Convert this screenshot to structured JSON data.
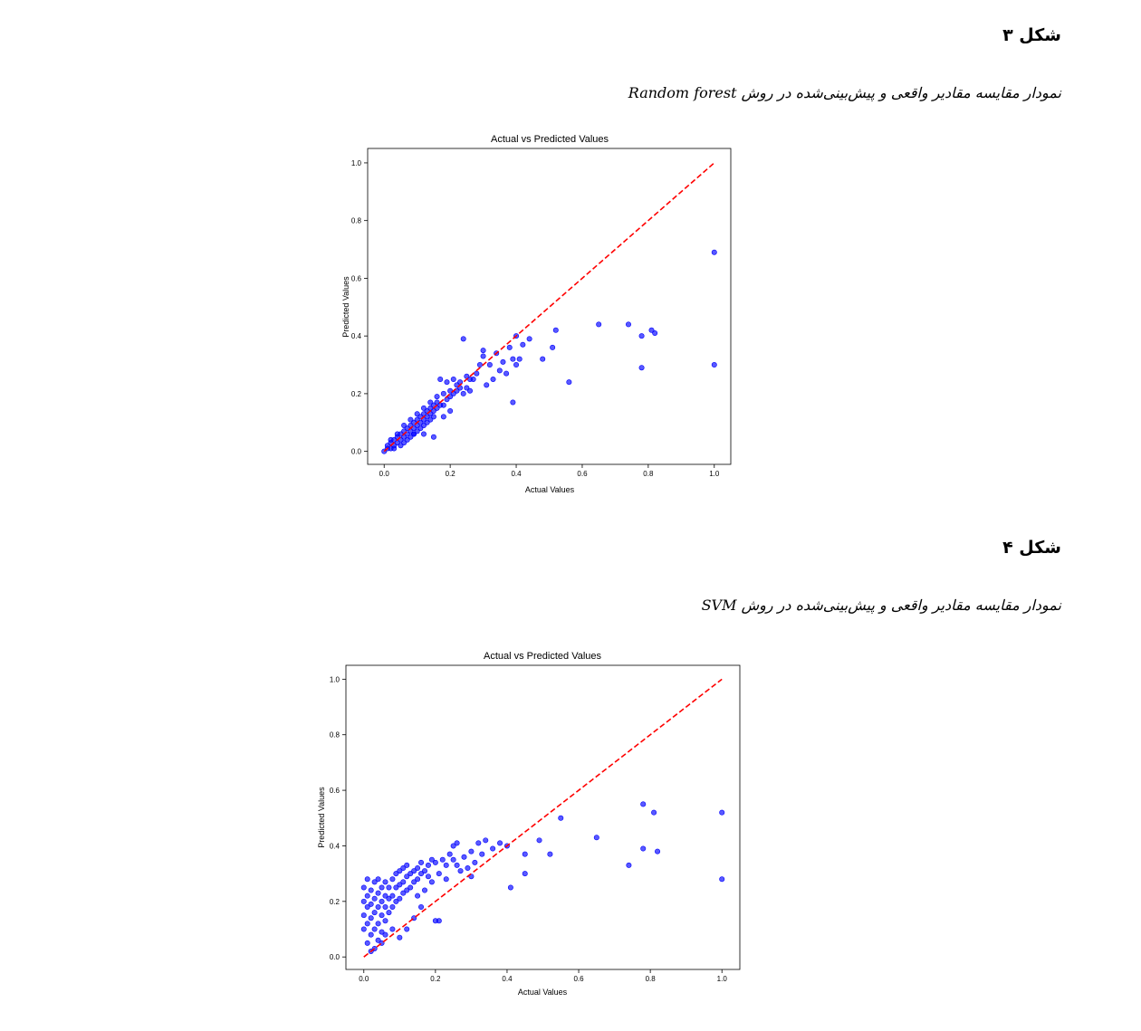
{
  "figures": [
    {
      "label": "شکل ۳",
      "caption": "نمودار مقایسه مقادیر واقعی و پیش‌بینی‌شده در روش Random forest",
      "chart_data": {
        "type": "scatter",
        "title": "Actual vs Predicted Values",
        "xlabel": "Actual Values",
        "ylabel": "Predicted Values",
        "xlim": [
          -0.05,
          1.05
        ],
        "ylim": [
          -0.045,
          1.05
        ],
        "xticks": [
          "0.0",
          "0.2",
          "0.4",
          "0.6",
          "0.8",
          "1.0"
        ],
        "yticks": [
          "0.0",
          "0.2",
          "0.4",
          "0.6",
          "0.8",
          "1.0"
        ],
        "point_color": "#0000ff",
        "reference_line": {
          "x": [
            0,
            1
          ],
          "y": [
            0,
            1
          ],
          "color": "#ff0000",
          "style": "dashed"
        },
        "points": [
          [
            0.0,
            0.0
          ],
          [
            0.01,
            0.01
          ],
          [
            0.01,
            0.02
          ],
          [
            0.02,
            0.01
          ],
          [
            0.02,
            0.03
          ],
          [
            0.03,
            0.02
          ],
          [
            0.03,
            0.04
          ],
          [
            0.04,
            0.03
          ],
          [
            0.04,
            0.05
          ],
          [
            0.05,
            0.04
          ],
          [
            0.05,
            0.06
          ],
          [
            0.06,
            0.05
          ],
          [
            0.06,
            0.07
          ],
          [
            0.07,
            0.06
          ],
          [
            0.07,
            0.08
          ],
          [
            0.08,
            0.07
          ],
          [
            0.08,
            0.09
          ],
          [
            0.09,
            0.08
          ],
          [
            0.09,
            0.1
          ],
          [
            0.1,
            0.09
          ],
          [
            0.1,
            0.11
          ],
          [
            0.11,
            0.1
          ],
          [
            0.11,
            0.12
          ],
          [
            0.12,
            0.11
          ],
          [
            0.12,
            0.13
          ],
          [
            0.13,
            0.12
          ],
          [
            0.13,
            0.14
          ],
          [
            0.14,
            0.13
          ],
          [
            0.14,
            0.15
          ],
          [
            0.15,
            0.14
          ],
          [
            0.15,
            0.16
          ],
          [
            0.16,
            0.15
          ],
          [
            0.16,
            0.17
          ],
          [
            0.17,
            0.16
          ],
          [
            0.02,
            0.04
          ],
          [
            0.03,
            0.01
          ],
          [
            0.04,
            0.06
          ],
          [
            0.05,
            0.02
          ],
          [
            0.06,
            0.03
          ],
          [
            0.07,
            0.04
          ],
          [
            0.08,
            0.05
          ],
          [
            0.09,
            0.06
          ],
          [
            0.1,
            0.07
          ],
          [
            0.11,
            0.08
          ],
          [
            0.12,
            0.09
          ],
          [
            0.13,
            0.1
          ],
          [
            0.14,
            0.11
          ],
          [
            0.15,
            0.12
          ],
          [
            0.06,
            0.09
          ],
          [
            0.08,
            0.11
          ],
          [
            0.1,
            0.13
          ],
          [
            0.12,
            0.15
          ],
          [
            0.14,
            0.17
          ],
          [
            0.16,
            0.19
          ],
          [
            0.18,
            0.2
          ],
          [
            0.18,
            0.16
          ],
          [
            0.19,
            0.18
          ],
          [
            0.2,
            0.19
          ],
          [
            0.2,
            0.21
          ],
          [
            0.21,
            0.2
          ],
          [
            0.22,
            0.21
          ],
          [
            0.22,
            0.23
          ],
          [
            0.23,
            0.22
          ],
          [
            0.17,
            0.25
          ],
          [
            0.19,
            0.24
          ],
          [
            0.21,
            0.25
          ],
          [
            0.23,
            0.24
          ],
          [
            0.24,
            0.2
          ],
          [
            0.25,
            0.22
          ],
          [
            0.26,
            0.21
          ],
          [
            0.27,
            0.25
          ],
          [
            0.28,
            0.27
          ],
          [
            0.25,
            0.26
          ],
          [
            0.26,
            0.25
          ],
          [
            0.3,
            0.33
          ],
          [
            0.3,
            0.35
          ],
          [
            0.29,
            0.3
          ],
          [
            0.31,
            0.23
          ],
          [
            0.32,
            0.3
          ],
          [
            0.33,
            0.25
          ],
          [
            0.34,
            0.34
          ],
          [
            0.35,
            0.28
          ],
          [
            0.36,
            0.31
          ],
          [
            0.37,
            0.27
          ],
          [
            0.38,
            0.36
          ],
          [
            0.39,
            0.32
          ],
          [
            0.4,
            0.3
          ],
          [
            0.41,
            0.32
          ],
          [
            0.42,
            0.37
          ],
          [
            0.44,
            0.39
          ],
          [
            0.48,
            0.32
          ],
          [
            0.51,
            0.36
          ],
          [
            0.52,
            0.42
          ],
          [
            0.56,
            0.24
          ],
          [
            0.39,
            0.17
          ],
          [
            0.24,
            0.39
          ],
          [
            0.4,
            0.4
          ],
          [
            0.65,
            0.44
          ],
          [
            0.74,
            0.44
          ],
          [
            0.78,
            0.4
          ],
          [
            0.81,
            0.42
          ],
          [
            0.82,
            0.41
          ],
          [
            0.78,
            0.29
          ],
          [
            1.0,
            0.69
          ],
          [
            1.0,
            0.3
          ],
          [
            0.09,
            0.06
          ],
          [
            0.12,
            0.06
          ],
          [
            0.15,
            0.05
          ],
          [
            0.2,
            0.14
          ],
          [
            0.18,
            0.12
          ]
        ]
      }
    },
    {
      "label": "شکل ۴",
      "caption": "نمودار مقایسه مقادیر واقعی و پیش‌بینی‌شده در روش SVM",
      "chart_data": {
        "type": "scatter",
        "title": "Actual vs Predicted Values",
        "xlabel": "Actual Values",
        "ylabel": "Predicted Values",
        "xlim": [
          -0.05,
          1.05
        ],
        "ylim": [
          -0.045,
          1.05
        ],
        "xticks": [
          "0.0",
          "0.2",
          "0.4",
          "0.6",
          "0.8",
          "1.0"
        ],
        "yticks": [
          "0.0",
          "0.2",
          "0.4",
          "0.6",
          "0.8",
          "1.0"
        ],
        "point_color": "#0000ff",
        "reference_line": {
          "x": [
            0,
            1
          ],
          "y": [
            0,
            1
          ],
          "color": "#ff0000",
          "style": "dashed"
        },
        "points": [
          [
            0.0,
            0.1
          ],
          [
            0.0,
            0.15
          ],
          [
            0.0,
            0.2
          ],
          [
            0.0,
            0.25
          ],
          [
            0.01,
            0.05
          ],
          [
            0.01,
            0.12
          ],
          [
            0.01,
            0.18
          ],
          [
            0.01,
            0.22
          ],
          [
            0.01,
            0.28
          ],
          [
            0.02,
            0.02
          ],
          [
            0.02,
            0.08
          ],
          [
            0.02,
            0.14
          ],
          [
            0.02,
            0.19
          ],
          [
            0.02,
            0.24
          ],
          [
            0.03,
            0.03
          ],
          [
            0.03,
            0.1
          ],
          [
            0.03,
            0.16
          ],
          [
            0.03,
            0.21
          ],
          [
            0.03,
            0.27
          ],
          [
            0.04,
            0.06
          ],
          [
            0.04,
            0.12
          ],
          [
            0.04,
            0.18
          ],
          [
            0.04,
            0.23
          ],
          [
            0.04,
            0.28
          ],
          [
            0.05,
            0.09
          ],
          [
            0.05,
            0.15
          ],
          [
            0.05,
            0.2
          ],
          [
            0.05,
            0.25
          ],
          [
            0.06,
            0.13
          ],
          [
            0.06,
            0.18
          ],
          [
            0.06,
            0.22
          ],
          [
            0.06,
            0.27
          ],
          [
            0.07,
            0.16
          ],
          [
            0.07,
            0.21
          ],
          [
            0.07,
            0.25
          ],
          [
            0.08,
            0.18
          ],
          [
            0.08,
            0.22
          ],
          [
            0.08,
            0.28
          ],
          [
            0.09,
            0.2
          ],
          [
            0.09,
            0.25
          ],
          [
            0.09,
            0.3
          ],
          [
            0.1,
            0.21
          ],
          [
            0.1,
            0.26
          ],
          [
            0.1,
            0.31
          ],
          [
            0.11,
            0.23
          ],
          [
            0.11,
            0.27
          ],
          [
            0.11,
            0.32
          ],
          [
            0.12,
            0.24
          ],
          [
            0.12,
            0.29
          ],
          [
            0.12,
            0.33
          ],
          [
            0.13,
            0.25
          ],
          [
            0.13,
            0.3
          ],
          [
            0.14,
            0.27
          ],
          [
            0.14,
            0.31
          ],
          [
            0.15,
            0.28
          ],
          [
            0.15,
            0.32
          ],
          [
            0.16,
            0.3
          ],
          [
            0.16,
            0.34
          ],
          [
            0.17,
            0.31
          ],
          [
            0.18,
            0.33
          ],
          [
            0.19,
            0.35
          ],
          [
            0.2,
            0.34
          ],
          [
            0.21,
            0.3
          ],
          [
            0.22,
            0.35
          ],
          [
            0.23,
            0.33
          ],
          [
            0.24,
            0.37
          ],
          [
            0.25,
            0.4
          ],
          [
            0.25,
            0.35
          ],
          [
            0.26,
            0.41
          ],
          [
            0.27,
            0.31
          ],
          [
            0.28,
            0.36
          ],
          [
            0.29,
            0.32
          ],
          [
            0.3,
            0.38
          ],
          [
            0.3,
            0.29
          ],
          [
            0.31,
            0.34
          ],
          [
            0.32,
            0.41
          ],
          [
            0.33,
            0.37
          ],
          [
            0.34,
            0.42
          ],
          [
            0.36,
            0.39
          ],
          [
            0.38,
            0.41
          ],
          [
            0.4,
            0.4
          ],
          [
            0.41,
            0.25
          ],
          [
            0.45,
            0.3
          ],
          [
            0.45,
            0.37
          ],
          [
            0.49,
            0.42
          ],
          [
            0.52,
            0.37
          ],
          [
            0.55,
            0.5
          ],
          [
            0.65,
            0.43
          ],
          [
            0.74,
            0.33
          ],
          [
            0.78,
            0.55
          ],
          [
            0.78,
            0.39
          ],
          [
            0.81,
            0.52
          ],
          [
            0.82,
            0.38
          ],
          [
            1.0,
            0.52
          ],
          [
            1.0,
            0.28
          ],
          [
            0.2,
            0.13
          ],
          [
            0.21,
            0.13
          ],
          [
            0.16,
            0.18
          ],
          [
            0.12,
            0.1
          ],
          [
            0.14,
            0.14
          ],
          [
            0.1,
            0.07
          ],
          [
            0.06,
            0.08
          ],
          [
            0.08,
            0.1
          ],
          [
            0.05,
            0.05
          ],
          [
            0.15,
            0.22
          ],
          [
            0.17,
            0.24
          ],
          [
            0.19,
            0.27
          ],
          [
            0.18,
            0.29
          ],
          [
            0.23,
            0.28
          ],
          [
            0.26,
            0.33
          ]
        ]
      }
    }
  ]
}
